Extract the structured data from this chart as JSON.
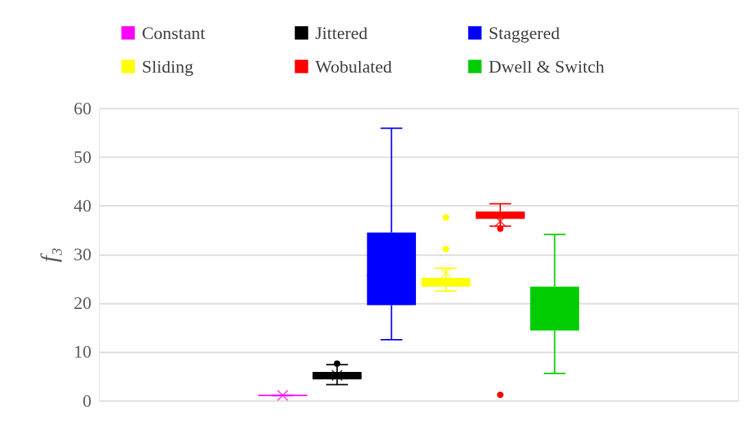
{
  "chart_data": {
    "type": "box",
    "ylabel": "f₃",
    "categories": [
      null
    ],
    "ylim": [
      0,
      60
    ],
    "yticks": [
      0,
      10,
      20,
      30,
      40,
      50,
      60
    ],
    "grid": "y",
    "legend": "top",
    "tick_labels": "y",
    "series": [
      {
        "name": "Constant",
        "color": "#ff00ff",
        "boxes": [
          {
            "low": 1.1,
            "q1": 1.1,
            "median": 1.1,
            "q3": 1.1,
            "high": 1.1,
            "mean": 1.1
          }
        ]
      },
      {
        "name": "Jittered",
        "color": "#000000",
        "boxes": [
          {
            "low": 3.3,
            "q1": 4.4,
            "median": 5.0,
            "q3": 5.9,
            "high": 7.4,
            "mean": 5.2,
            "outliers": [
              7.6
            ]
          }
        ]
      },
      {
        "name": "Staggered",
        "color": "#0000ff",
        "boxes": [
          {
            "low": 12.5,
            "q1": 19.6,
            "median": 25.7,
            "q3": 34.5,
            "high": 55.9,
            "mean": 27.6
          }
        ]
      },
      {
        "name": "Sliding",
        "color": "#ffff00",
        "boxes": [
          {
            "low": 22.5,
            "q1": 23.4,
            "median": 24.3,
            "q3": 25.2,
            "high": 27.2,
            "mean": 26.2,
            "outliers": [
              31.1,
              37.6
            ]
          }
        ]
      },
      {
        "name": "Wobulated",
        "color": "#ff0000",
        "boxes": [
          {
            "low": 35.8,
            "q1": 37.3,
            "median": 38.0,
            "q3": 38.8,
            "high": 40.4,
            "mean": 36.8,
            "outliers": [
              35.3,
              1.2
            ]
          }
        ]
      },
      {
        "name": "Dwell & Switch",
        "color": "#00cc00",
        "boxes": [
          {
            "low": 5.6,
            "q1": 14.4,
            "median": 19.0,
            "q3": 23.4,
            "high": 34.1
          }
        ]
      }
    ]
  }
}
